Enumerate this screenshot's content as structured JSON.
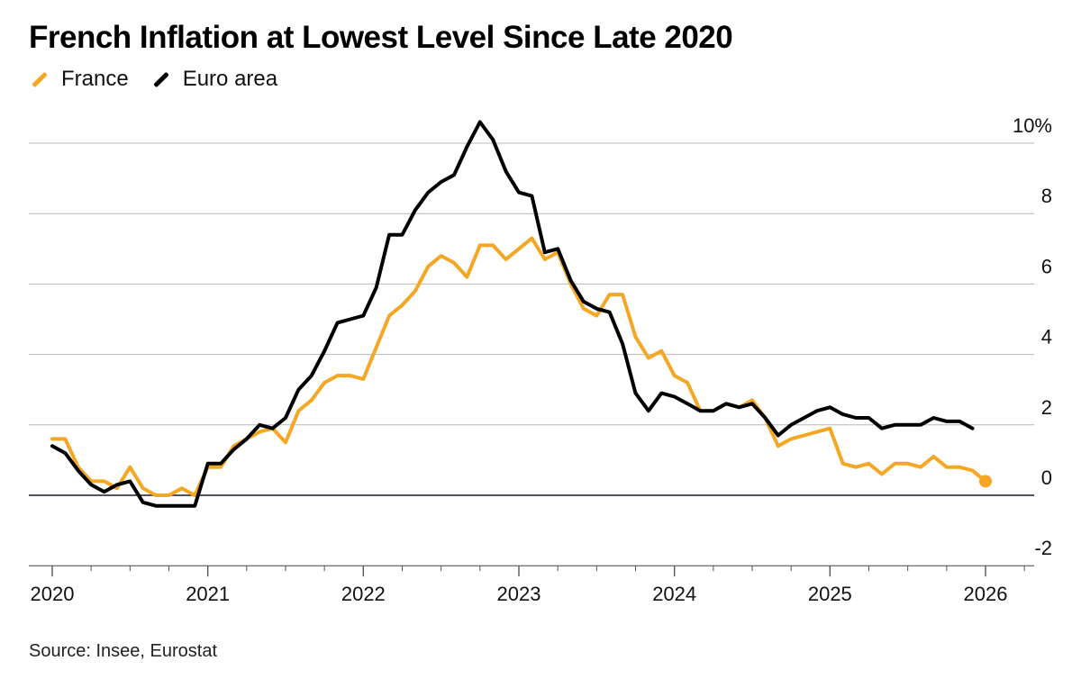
{
  "title": "French Inflation at Lowest Level Since Late 2020",
  "source": "Source: Insee, Eurostat",
  "chart_data": {
    "type": "line",
    "title": "French Inflation at Lowest Level Since Late 2020",
    "xlabel": "",
    "ylabel": "",
    "legend_position": "top-left",
    "grid": true,
    "y_axis_side": "right",
    "xlim": [
      2019.95,
      2026.25
    ],
    "ylim": [
      -2,
      10.5
    ],
    "x_ticks": [
      {
        "value": 2020,
        "label": "2020"
      },
      {
        "value": 2021,
        "label": "2021"
      },
      {
        "value": 2022,
        "label": "2022"
      },
      {
        "value": 2023,
        "label": "2023"
      },
      {
        "value": 2024,
        "label": "2024"
      },
      {
        "value": 2025,
        "label": "2025"
      },
      {
        "value": 2026,
        "label": "2026"
      }
    ],
    "y_ticks": [
      {
        "value": 10,
        "label": "10%"
      },
      {
        "value": 8,
        "label": "8"
      },
      {
        "value": 6,
        "label": "6"
      },
      {
        "value": 4,
        "label": "4"
      },
      {
        "value": 2,
        "label": "2"
      },
      {
        "value": 0,
        "label": "0"
      },
      {
        "value": -2,
        "label": "-2"
      }
    ],
    "series": [
      {
        "name": "France",
        "color": "#f5a623",
        "end_marker": true,
        "start": "2020-01",
        "values": [
          1.6,
          1.6,
          0.8,
          0.4,
          0.4,
          0.2,
          0.8,
          0.2,
          0.0,
          0.0,
          0.2,
          0.0,
          0.8,
          0.8,
          1.4,
          1.6,
          1.8,
          1.9,
          1.5,
          2.4,
          2.7,
          3.2,
          3.4,
          3.4,
          3.3,
          4.2,
          5.1,
          5.4,
          5.8,
          6.5,
          6.8,
          6.6,
          6.2,
          7.1,
          7.1,
          6.7,
          7.0,
          7.3,
          6.7,
          6.9,
          6.0,
          5.3,
          5.1,
          5.7,
          5.7,
          4.5,
          3.9,
          4.1,
          3.4,
          3.2,
          2.4,
          2.4,
          2.6,
          2.5,
          2.7,
          2.2,
          1.4,
          1.6,
          1.7,
          1.8,
          1.9,
          0.9,
          0.8,
          0.9,
          0.6,
          0.9,
          0.9,
          0.8,
          1.1,
          0.8,
          0.8,
          0.7,
          0.4
        ]
      },
      {
        "name": "Euro area",
        "color": "#000000",
        "start": "2020-01",
        "values": [
          1.4,
          1.2,
          0.7,
          0.3,
          0.1,
          0.3,
          0.4,
          -0.2,
          -0.3,
          -0.3,
          -0.3,
          -0.3,
          0.9,
          0.9,
          1.3,
          1.6,
          2.0,
          1.9,
          2.2,
          3.0,
          3.4,
          4.1,
          4.9,
          5.0,
          5.1,
          5.9,
          7.4,
          7.4,
          8.1,
          8.6,
          8.9,
          9.1,
          9.9,
          10.6,
          10.1,
          9.2,
          8.6,
          8.5,
          6.9,
          7.0,
          6.1,
          5.5,
          5.3,
          5.2,
          4.3,
          2.9,
          2.4,
          2.9,
          2.8,
          2.6,
          2.4,
          2.4,
          2.6,
          2.5,
          2.6,
          2.2,
          1.7,
          2.0,
          2.2,
          2.4,
          2.5,
          2.3,
          2.2,
          2.2,
          1.9,
          2.0,
          2.0,
          2.0,
          2.2,
          2.1,
          2.1,
          1.9
        ]
      }
    ]
  }
}
